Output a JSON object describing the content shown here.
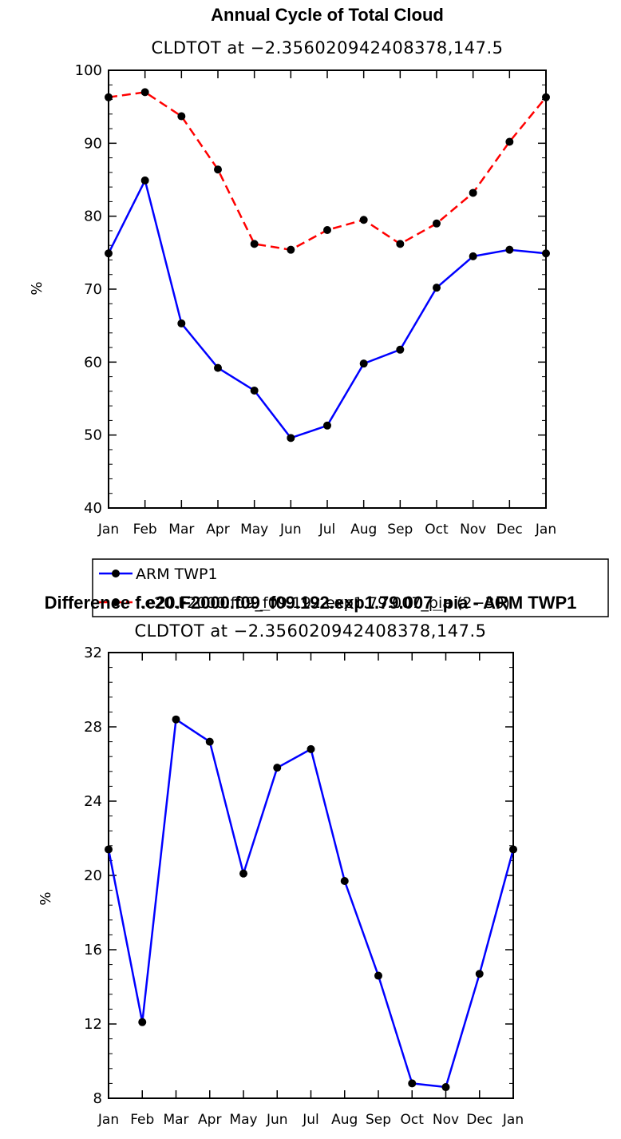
{
  "chart_data": [
    {
      "type": "line",
      "title": "Annual Cycle of Total Cloud",
      "subtitle": "CLDTOT at −2.356020942408378,147.5",
      "ylabel": "%",
      "xlabel": "",
      "ylim": [
        40,
        100
      ],
      "yticks": [
        40,
        50,
        60,
        70,
        80,
        90,
        100
      ],
      "categories": [
        "Jan",
        "Feb",
        "Mar",
        "Apr",
        "May",
        "Jun",
        "Jul",
        "Aug",
        "Sep",
        "Oct",
        "Nov",
        "Dec",
        "Jan"
      ],
      "series": [
        {
          "name": "ARM TWP1",
          "color": "#0000ff",
          "dash": "solid",
          "values": [
            74.9,
            84.9,
            65.3,
            59.2,
            56.1,
            49.6,
            51.3,
            59.8,
            61.7,
            70.2,
            74.5,
            75.4,
            74.9
          ]
        },
        {
          "name": "f.e20.F2000.f09_f09.192.exp1.79.007_pia (2−30)",
          "color": "#ff0000",
          "dash": "dashed",
          "values": [
            96.3,
            97.0,
            93.7,
            86.4,
            76.2,
            75.4,
            78.1,
            79.5,
            76.2,
            79.0,
            83.2,
            90.2,
            96.3
          ]
        }
      ],
      "legend": "below",
      "grid": false
    },
    {
      "type": "line",
      "title": "Difference f.e20.F2000.f09_f09.192.exp1.79.007_pia - ARM TWP1",
      "subtitle": "CLDTOT at −2.356020942408378,147.5",
      "ylabel": "%",
      "xlabel": "",
      "ylim": [
        8,
        32
      ],
      "yticks": [
        8,
        12,
        16,
        20,
        24,
        28,
        32
      ],
      "categories": [
        "Jan",
        "Feb",
        "Mar",
        "Apr",
        "May",
        "Jun",
        "Jul",
        "Aug",
        "Sep",
        "Oct",
        "Nov",
        "Dec",
        "Jan"
      ],
      "series": [
        {
          "color": "#0000ff",
          "dash": "solid",
          "values": [
            21.4,
            12.1,
            28.4,
            27.2,
            20.1,
            25.8,
            26.8,
            19.7,
            14.6,
            8.8,
            8.6,
            14.7,
            21.4
          ]
        }
      ],
      "grid": false
    }
  ]
}
